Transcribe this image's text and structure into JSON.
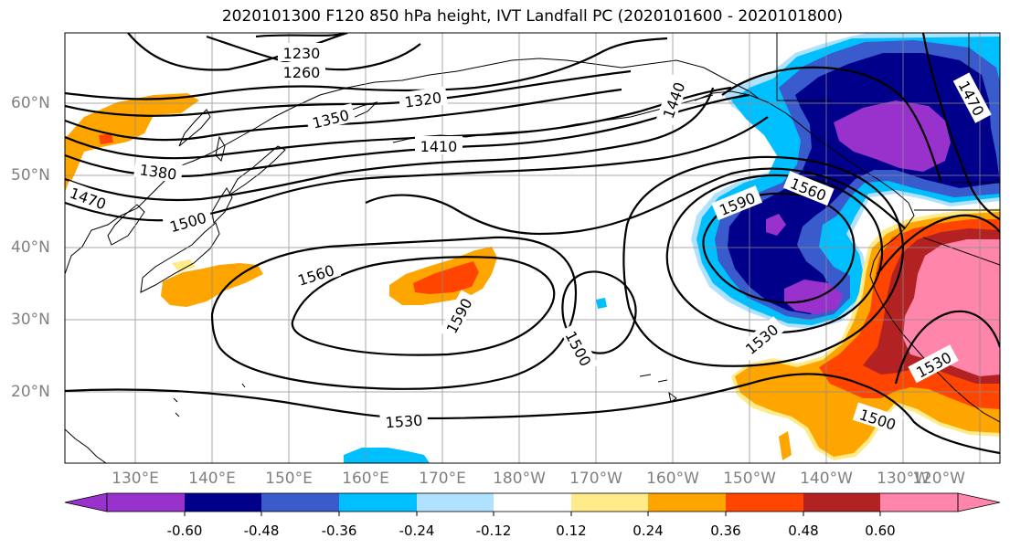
{
  "title": "2020101300 F120 850 hPa height, IVT Landfall PC (2020101600 - 2020101800)",
  "lat_labels": [
    "60°N",
    "50°N",
    "40°N",
    "30°N",
    "20°N"
  ],
  "lon_labels": [
    "130°E",
    "140°E",
    "150°E",
    "160°E",
    "170°E",
    "180°W",
    "170°W",
    "160°W",
    "150°W",
    "140°W",
    "130°W",
    "120°W"
  ],
  "contour_labels": [
    "1230",
    "1260",
    "1320",
    "1350",
    "1380",
    "1410",
    "1440",
    "1470",
    "1500",
    "1560",
    "1590",
    "1500",
    "1530",
    "1590",
    "1560",
    "1530",
    "1500",
    "1530",
    "1470"
  ],
  "colorbar": {
    "labels": [
      "-0.60",
      "-0.48",
      "-0.36",
      "-0.24",
      "-0.12",
      "0.12",
      "0.24",
      "0.36",
      "0.48",
      "0.60"
    ],
    "colors": [
      "#9932cc",
      "#00008b",
      "#3a5bcc",
      "#00bfff",
      "#b0e2ff",
      "#ffffff",
      "#ffeb8a",
      "#ffa500",
      "#ff4500",
      "#b22222",
      "#ff85aa"
    ]
  },
  "palette": {
    "purple": "#9932cc",
    "navy": "#00008b",
    "royal": "#3a5bcc",
    "sky": "#00bfff",
    "pale": "#b0e2ff",
    "yellow": "#ffeb8a",
    "orange": "#ffa500",
    "redorange": "#ff4500",
    "firebrick": "#b22222",
    "pink": "#ff85aa"
  }
}
